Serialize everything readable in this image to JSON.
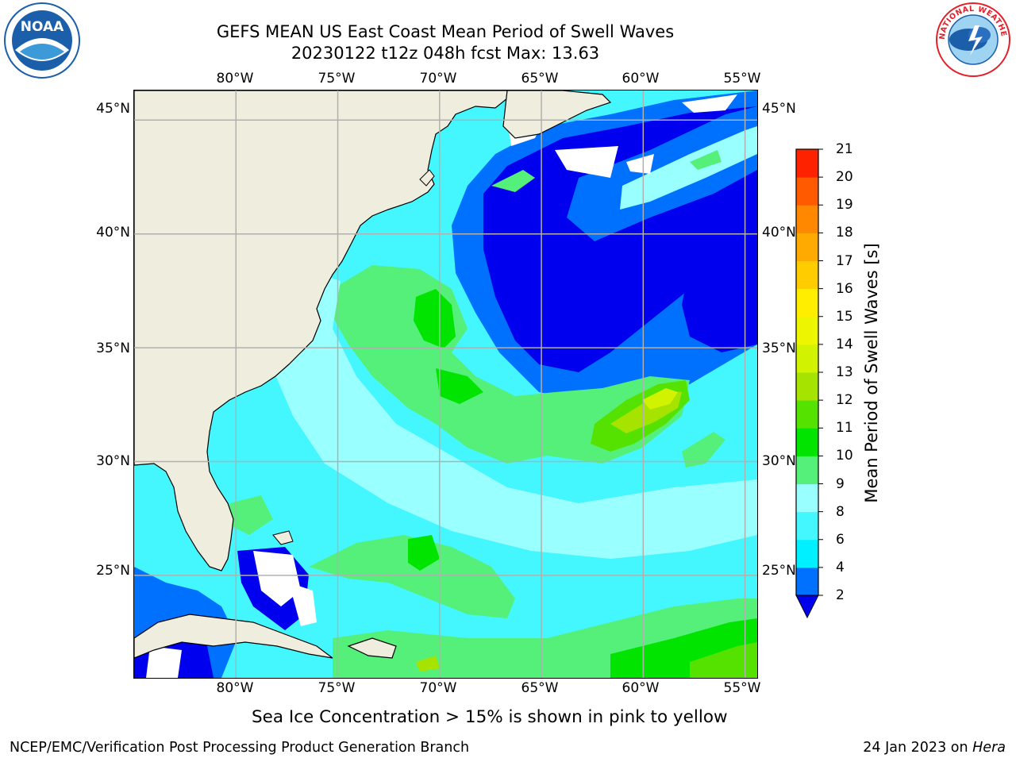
{
  "title": {
    "line1": "GEFS MEAN US East Coast Mean Period of Swell Waves",
    "line2": "20230122 t12z 048h fcst   Max: 13.63"
  },
  "map": {
    "longitude_ticks": [
      "80°W",
      "75°W",
      "70°W",
      "65°W",
      "60°W",
      "55°W"
    ],
    "latitude_ticks": [
      "45°N",
      "40°N",
      "35°N",
      "30°N",
      "25°N"
    ],
    "longitude_range_deg": [
      -85,
      -54.4
    ],
    "latitude_range_deg": [
      20.5,
      46.3
    ],
    "land_color": "#efedde",
    "ice_note": "Sea Ice Concentration > 15% is shown in pink to yellow"
  },
  "colorbar": {
    "label": "Mean Period of Swell Waves [s]",
    "ticks": [
      "2",
      "4",
      "6",
      "8",
      "9",
      "10",
      "11",
      "12",
      "13",
      "14",
      "15",
      "16",
      "17",
      "18",
      "19",
      "20",
      "21"
    ],
    "colors": [
      "#0070ff",
      "#00f0ff",
      "#44f7ff",
      "#99ffff",
      "#55f07a",
      "#00e400",
      "#56e200",
      "#a6e300",
      "#d1f200",
      "#eef500",
      "#ffee00",
      "#ffcc00",
      "#ffaa00",
      "#ff8800",
      "#ff5a00",
      "#ff2200"
    ],
    "under_color": "#0000ee"
  },
  "logos": {
    "left_text": "NOAA",
    "right_text": "NATIONAL WEATHER SERVICE"
  },
  "footer": {
    "left": "NCEP/EMC/Verification Post Processing Product Generation Branch",
    "right_prefix": "24 Jan 2023 on ",
    "right_emphasis": "Hera"
  },
  "colors": {
    "grid": "#b0b0b0",
    "coast": "#000000",
    "noaa_blue": "#1b5faa",
    "nws_red": "#e3202a"
  }
}
